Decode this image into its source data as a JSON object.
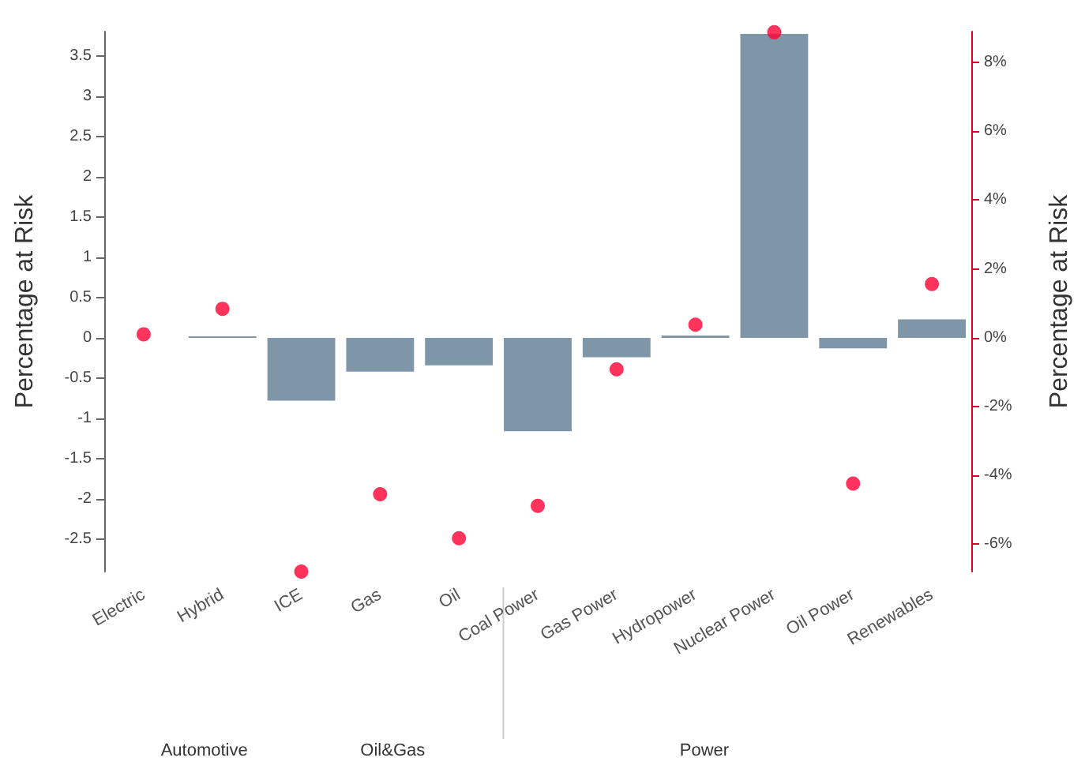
{
  "chart_data": {
    "type": "bar",
    "ylabel": "Percentage at Risk",
    "y2label": "Percentage at Risk",
    "categories": [
      "Electric",
      "Hybrid",
      "ICE",
      "Gas",
      "Oil",
      "Coal Power",
      "Gas Power",
      "Hydropower",
      "Nuclear Power",
      "Oil Power",
      "Renewables"
    ],
    "series": [
      {
        "color": "#7f95a8",
        "values": [
          0,
          0.02,
          -0.78,
          -0.42,
          -0.34,
          -1.16,
          -0.24,
          0.03,
          3.77,
          -0.13,
          0.23
        ]
      },
      {
        "type": "scatter",
        "axis": "y2",
        "color": "#ff0033",
        "x": [
          "Electric",
          "Hybrid",
          "ICE",
          "Gas",
          "Oil",
          "Coal Power",
          "Gas Power",
          "Hydropower",
          "Nuclear Power",
          "Oil Power",
          "Renewables"
        ],
        "values": [
          0.1,
          0.84,
          -6.8,
          -4.55,
          -5.83,
          -4.89,
          -0.92,
          0.38,
          8.88,
          -4.24,
          1.56
        ]
      }
    ],
    "ylim": [
      -2.9,
      3.8
    ],
    "yticks": [
      -2.5,
      -2,
      -1.5,
      -1,
      -0.5,
      0,
      0.5,
      1,
      1.5,
      2,
      2.5,
      3,
      3.5
    ],
    "y2lim": [
      -6.8,
      8.9
    ],
    "y2ticks": [
      {
        "value": -6,
        "label": "-6%"
      },
      {
        "value": -4,
        "label": "-4%"
      },
      {
        "value": -2,
        "label": "-2%"
      },
      {
        "value": 0,
        "label": "0%"
      },
      {
        "value": 2,
        "label": "2%"
      },
      {
        "value": 4,
        "label": "4%"
      },
      {
        "value": 6,
        "label": "6%"
      },
      {
        "value": 8,
        "label": "8%"
      }
    ],
    "annotations": [
      "Automotive",
      "Oil&Gas",
      "Power"
    ],
    "grid": false,
    "marker": "circle"
  }
}
